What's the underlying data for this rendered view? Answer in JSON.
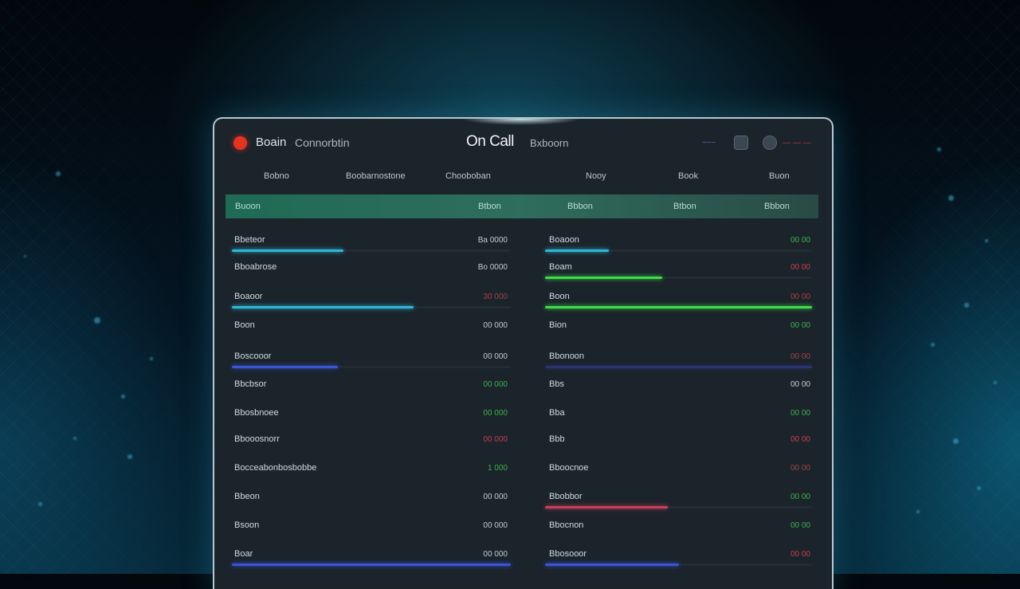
{
  "colors": {
    "accent": "#2fb7d6",
    "green": "#3ddc4a",
    "red": "#e0474c",
    "blue": "#3a56d6",
    "header_teal": "#1f6b55"
  },
  "titlebar": {
    "app_name": "Boain",
    "app_subtitle": "Connorbtin",
    "center_title": "On Call",
    "center_subtitle": "Bxboorn",
    "link_text": "~~~",
    "status_text": "— — —",
    "logo_icon": "red-circle-icon",
    "button_icons": [
      "square-button-icon",
      "circle-button-icon"
    ]
  },
  "tabs": [
    "Bobno",
    "Boobarnostone",
    "Chooboban",
    "Nooy",
    "Book",
    "Buon"
  ],
  "table_header": {
    "col1": "Buoon",
    "col2": "Btbon",
    "col3": "Bbbon",
    "col4": "Btbon",
    "col5": "Bbbon"
  },
  "left_rows": [
    {
      "label": "Bbeteor",
      "value": "Ba 0000",
      "value_color": "#c6cdd3",
      "bar": {
        "fill": 0.4,
        "color": "#2fb7d6"
      }
    },
    {
      "label": "Bboabrose",
      "value": "Bo 0000",
      "value_color": "#c6cdd3",
      "bar": null
    },
    {
      "label": "Boaoor",
      "value": "30 000",
      "value_color": "#a24444",
      "bar": {
        "fill": 0.65,
        "color": "#2fb7d6"
      }
    },
    {
      "label": "Boon",
      "value": "00 000",
      "value_color": "#c6cdd3",
      "bar": null
    },
    {
      "label": "Boscooor",
      "value": "00 000",
      "value_color": "#c6cdd3",
      "bar": {
        "fill": 0.38,
        "color": "#3a56d6"
      }
    },
    {
      "label": "Bbcbsor",
      "value": "00 000",
      "value_color": "#3ab54a",
      "bar": null
    },
    {
      "label": "Bbosbnoee",
      "value": "00 000",
      "value_color": "#3ab54a",
      "bar": null
    },
    {
      "label": "Bbooosnorr",
      "value": "00 000",
      "value_color": "#c4404a",
      "bar": null
    },
    {
      "label": "Bocceabonbosbobbe",
      "value": "1 000",
      "value_color": "#3ab54a",
      "bar": null
    },
    {
      "label": "Bbeon",
      "value": "00 000",
      "value_color": "#c6cdd3",
      "bar": null
    },
    {
      "label": "Bsoon",
      "value": "00 000",
      "value_color": "#c6cdd3",
      "bar": null
    },
    {
      "label": "Boar",
      "value": "00 000",
      "value_color": "#c6cdd3",
      "bar": {
        "fill": 1.0,
        "color": "#3a56d6"
      }
    }
  ],
  "right_rows": [
    {
      "label": "Boaoon",
      "value": "00 00",
      "value_color": "#3ab54a",
      "bar": {
        "fill": 0.24,
        "color": "#2fb7d6"
      }
    },
    {
      "label": "Boam",
      "value": "00 00",
      "value_color": "#c4404a",
      "bar": {
        "fill": 0.44,
        "color": "#3ddc4a"
      }
    },
    {
      "label": "Boon",
      "value": "00 00",
      "value_color": "#a24444",
      "bar": {
        "fill": 1.0,
        "color": "#3ddc4a"
      }
    },
    {
      "label": "Bion",
      "value": "00 00",
      "value_color": "#3ab54a",
      "bar": null
    },
    {
      "label": "Bbonoon",
      "value": "00 00",
      "value_color": "#a24444",
      "bar": {
        "fill": 1.0,
        "color": "#2a3470"
      }
    },
    {
      "label": "Bbs",
      "value": "00 00",
      "value_color": "#c6cdd3",
      "bar": null
    },
    {
      "label": "Bba",
      "value": "00 00",
      "value_color": "#3ab54a",
      "bar": null
    },
    {
      "label": "Bbb",
      "value": "00 00",
      "value_color": "#c4404a",
      "bar": null
    },
    {
      "label": "Bboocnoe",
      "value": "00 00",
      "value_color": "#a24444",
      "bar": null
    },
    {
      "label": "Bbobbor",
      "value": "00 00",
      "value_color": "#3ab54a",
      "bar": {
        "fill": 0.46,
        "color": "#c8405a"
      }
    },
    {
      "label": "Bbocnon",
      "value": "00 00",
      "value_color": "#3ab54a",
      "bar": null
    },
    {
      "label": "Bbosooor",
      "value": "00 00",
      "value_color": "#c4404a",
      "bar": {
        "fill": 0.5,
        "color": "#3a56d6"
      }
    }
  ]
}
